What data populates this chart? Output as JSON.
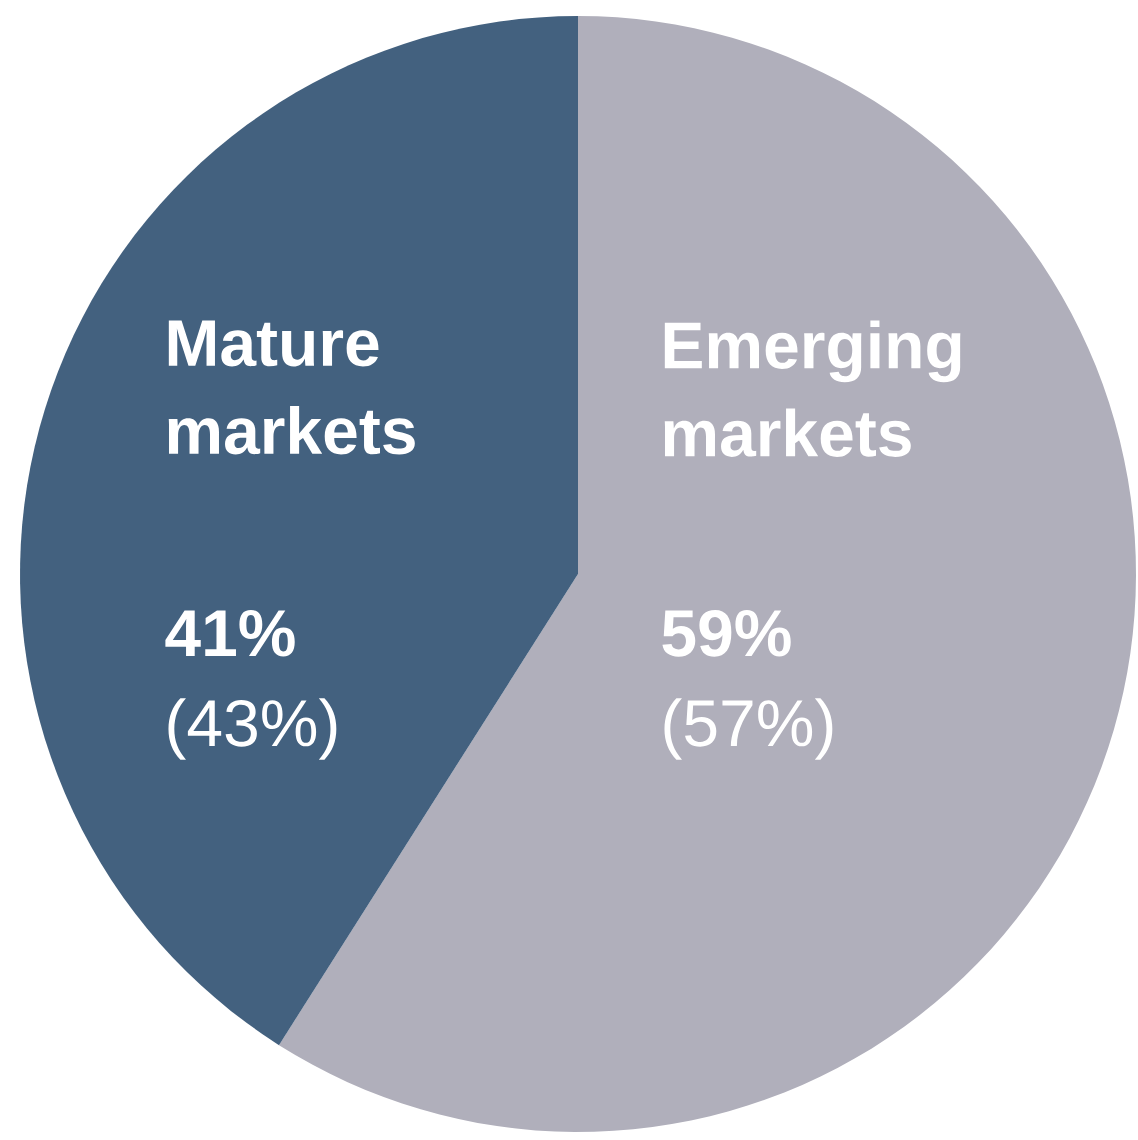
{
  "chart_data": {
    "type": "pie",
    "categories": [
      "Emerging markets",
      "Mature markets"
    ],
    "values": [
      59,
      41
    ],
    "colors": [
      "#b0afbb",
      "#43617f"
    ],
    "value_labels": [
      "59%",
      "41%"
    ],
    "annotations": [
      "(57%)",
      "(43%)"
    ]
  }
}
